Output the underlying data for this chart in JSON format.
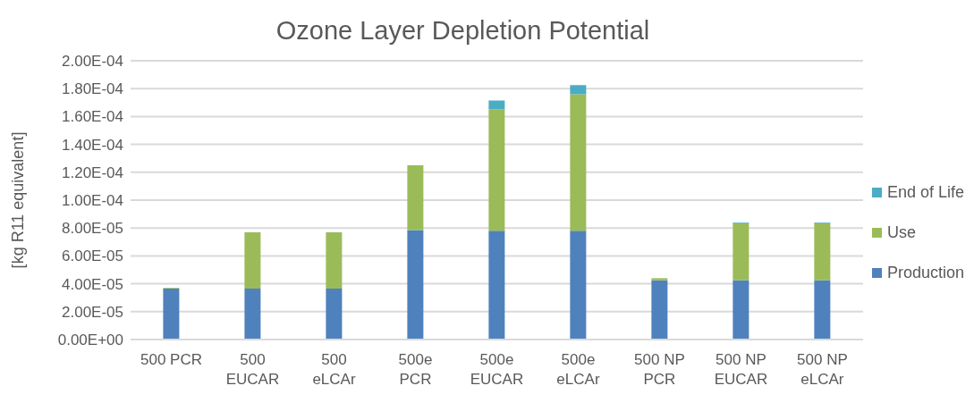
{
  "chart_data": {
    "type": "bar",
    "title": "Ozone Layer Depletion Potential",
    "ylabel": "[kg R11 equivalent]",
    "categories": [
      "500 PCR",
      "500 EUCAR",
      "500 eLCAr",
      "500e PCR",
      "500e EUCAR",
      "500e eLCAr",
      "500 NP PCR",
      "500 NP EUCAR",
      "500 NP eLCAr"
    ],
    "stacked": true,
    "series": [
      {
        "name": "Production",
        "color": "#4f81bd",
        "values": [
          3.65e-05,
          3.65e-05,
          3.65e-05,
          7.85e-05,
          7.8e-05,
          7.8e-05,
          4.25e-05,
          4.25e-05,
          4.25e-05
        ]
      },
      {
        "name": "Use",
        "color": "#9bbb59",
        "values": [
          5e-07,
          4.05e-05,
          4.05e-05,
          4.65e-05,
          8.7e-05,
          9.8e-05,
          1.5e-06,
          4.1e-05,
          4.1e-05
        ]
      },
      {
        "name": "End of Life",
        "color": "#4bacc6",
        "values": [
          0,
          null,
          null,
          0,
          6.5e-06,
          6.5e-06,
          0,
          5e-07,
          5e-07
        ]
      }
    ],
    "ylim": [
      0,
      0.0002
    ],
    "yticks": [
      {
        "value": 0,
        "label": "0.00E+00"
      },
      {
        "value": 2e-05,
        "label": "2.00E-05"
      },
      {
        "value": 4e-05,
        "label": "4.00E-05"
      },
      {
        "value": 6e-05,
        "label": "6.00E-05"
      },
      {
        "value": 8e-05,
        "label": "8.00E-05"
      },
      {
        "value": 0.0001,
        "label": "1.00E-04"
      },
      {
        "value": 0.00012,
        "label": "1.20E-04"
      },
      {
        "value": 0.00014,
        "label": "1.40E-04"
      },
      {
        "value": 0.00016,
        "label": "1.60E-04"
      },
      {
        "value": 0.00018,
        "label": "1.80E-04"
      },
      {
        "value": 0.0002,
        "label": "2.00E-04"
      }
    ],
    "grid": "y",
    "legend": "right"
  }
}
